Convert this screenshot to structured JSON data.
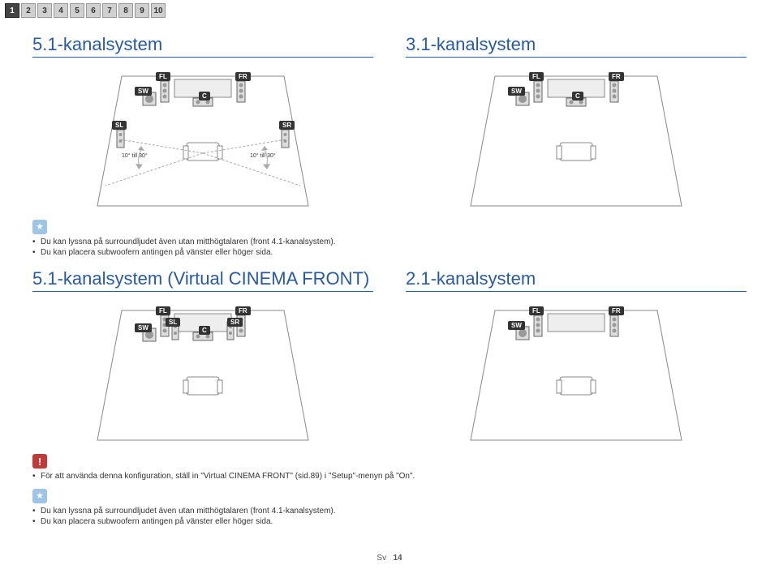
{
  "page_tabs": [
    "1",
    "2",
    "3",
    "4",
    "5",
    "6",
    "7",
    "8",
    "9",
    "10"
  ],
  "active_tab_index": 0,
  "sections": {
    "s51": {
      "title": "5.1-kanalsystem",
      "angle_left": "10° till 30°",
      "angle_right": "10° till 30°"
    },
    "s31": {
      "title": "3.1-kanalsystem"
    },
    "s51v": {
      "title": "5.1-kanalsystem (Virtual CINEMA FRONT)"
    },
    "s21": {
      "title": "2.1-kanalsystem"
    }
  },
  "labels": {
    "FL": "FL",
    "FR": "FR",
    "SW": "SW",
    "C": "C",
    "SL": "SL",
    "SR": "SR"
  },
  "tips1": [
    "Du kan lyssna på surroundljudet även utan mitthögtalaren (front 4.1-kanalsystem).",
    "Du kan placera subwoofern antingen på vänster eller höger sida."
  ],
  "warn_text": "För att använda denna konfiguration, ställ in \"Virtual CINEMA FRONT\" (sid.89) i \"Setup\"-menyn på \"On\".",
  "tips2": [
    "Du kan lyssna på surroundljudet även utan mitthögtalaren (front 4.1-kanalsystem).",
    "Du kan placera subwoofern antingen på vänster eller höger sida."
  ],
  "footer_lang": "Sv",
  "footer_page": "14"
}
